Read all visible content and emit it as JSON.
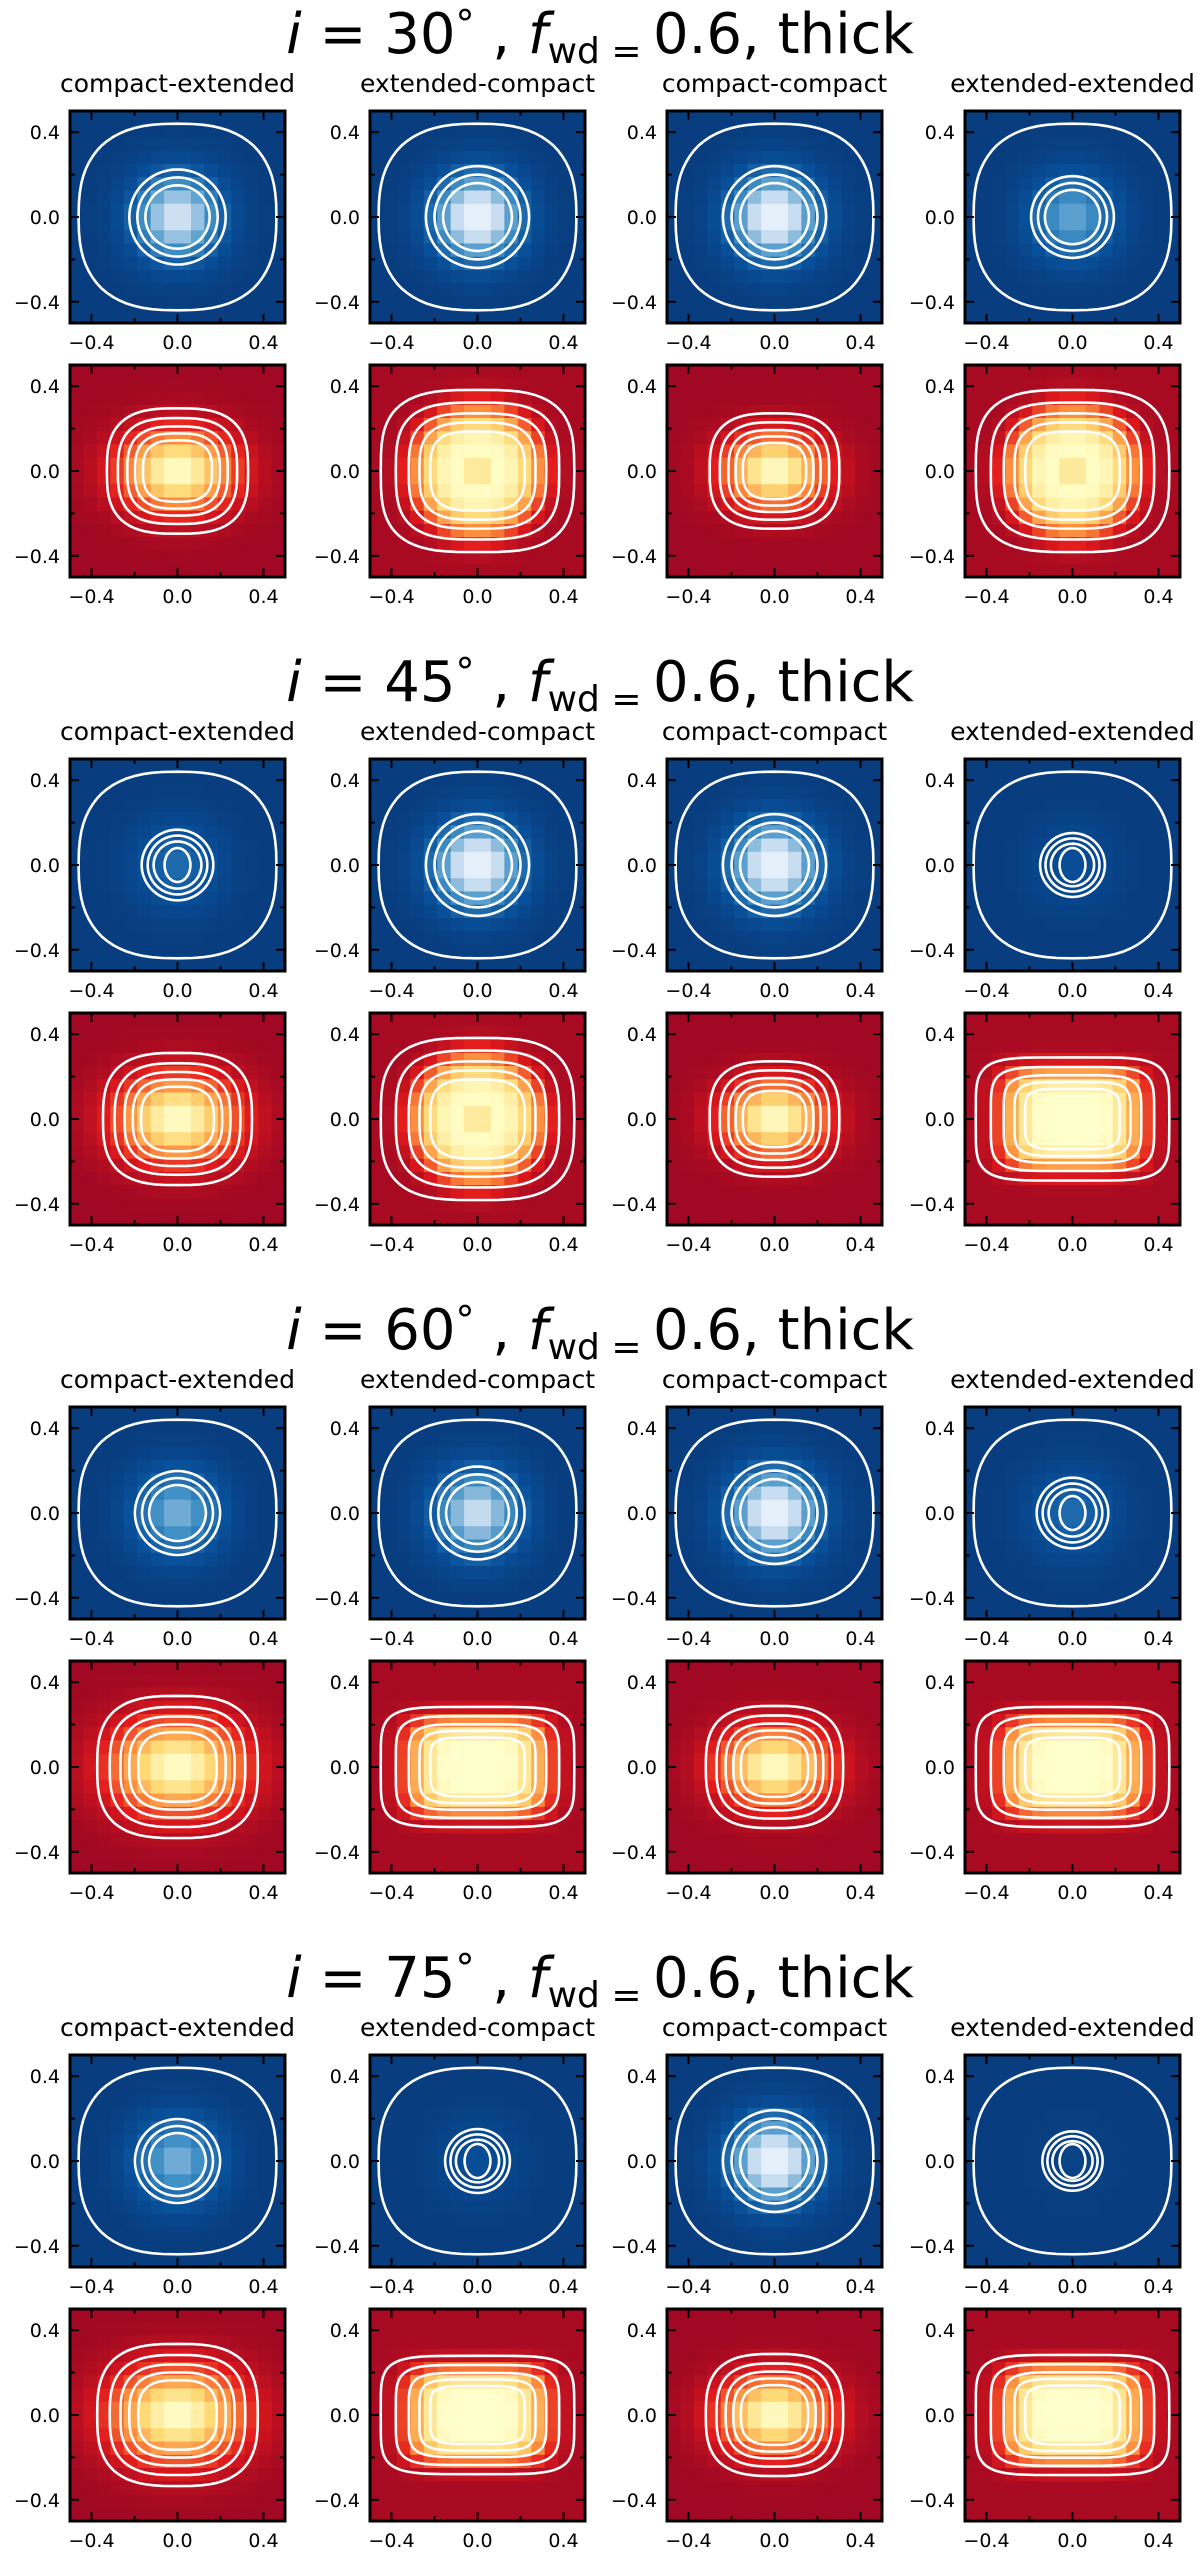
{
  "figure": {
    "title_suffix": ", thick",
    "f_symbol": "f",
    "f_subscript": "wd",
    "f_value": "0.6",
    "i_symbol": "i",
    "degree": "°"
  },
  "chart_data": [
    {
      "type": "heatmap",
      "title": "i = 30°, f_wd = 0.6, thick",
      "inclination": "30",
      "panels": [
        {
          "label": "compact-extended",
          "blue_peak": 0.85,
          "red_shape": "blob",
          "red_core": 0.45
        },
        {
          "label": "extended-compact",
          "blue_peak": 1.0,
          "red_shape": "ring",
          "red_core": 0.9
        },
        {
          "label": "compact-compact",
          "blue_peak": 1.0,
          "red_shape": "blob",
          "red_core": 0.3
        },
        {
          "label": "extended-extended",
          "blue_peak": 0.55,
          "red_shape": "ring",
          "red_core": 1.0
        }
      ],
      "xticks": [
        "−0.4",
        "0.0",
        "0.4"
      ],
      "yticks": [
        "0.4",
        "0.0",
        "−0.4"
      ],
      "xlim": [
        -0.5,
        0.5
      ],
      "ylim": [
        -0.5,
        0.5
      ]
    },
    {
      "type": "heatmap",
      "title": "i = 45°, f_wd = 0.6, thick",
      "inclination": "45",
      "panels": [
        {
          "label": "compact-extended",
          "blue_peak": 0.3,
          "red_shape": "blob",
          "red_core": 0.55
        },
        {
          "label": "extended-compact",
          "blue_peak": 1.0,
          "red_shape": "ring",
          "red_core": 1.2
        },
        {
          "label": "compact-compact",
          "blue_peak": 1.0,
          "red_shape": "blob",
          "red_core": 0.3
        },
        {
          "label": "extended-extended",
          "blue_peak": 0.15,
          "red_shape": "flat",
          "red_core": 1.25
        }
      ],
      "xticks": [
        "−0.4",
        "0.0",
        "0.4"
      ],
      "yticks": [
        "0.4",
        "0.0",
        "−0.4"
      ],
      "xlim": [
        -0.5,
        0.5
      ],
      "ylim": [
        -0.5,
        0.5
      ]
    },
    {
      "type": "heatmap",
      "title": "i = 60°, f_wd = 0.6, thick",
      "inclination": "60",
      "panels": [
        {
          "label": "compact-extended",
          "blue_peak": 0.6,
          "red_shape": "blob",
          "red_core": 0.7
        },
        {
          "label": "extended-compact",
          "blue_peak": 0.8,
          "red_shape": "flat",
          "red_core": 1.5
        },
        {
          "label": "compact-compact",
          "blue_peak": 1.0,
          "red_shape": "blob",
          "red_core": 0.4
        },
        {
          "label": "extended-extended",
          "blue_peak": 0.3,
          "red_shape": "flat",
          "red_core": 1.5
        }
      ],
      "xticks": [
        "−0.4",
        "0.0",
        "0.4"
      ],
      "yticks": [
        "0.4",
        "0.0",
        "−0.4"
      ],
      "xlim": [
        -0.5,
        0.5
      ],
      "ylim": [
        -0.5,
        0.5
      ]
    },
    {
      "type": "heatmap",
      "title": "i = 75°, f_wd = 0.6, thick",
      "inclination": "75",
      "panels": [
        {
          "label": "compact-extended",
          "blue_peak": 0.6,
          "red_shape": "blob",
          "red_core": 0.7
        },
        {
          "label": "extended-compact",
          "blue_peak": 0.15,
          "red_shape": "flat",
          "red_core": 1.7
        },
        {
          "label": "compact-compact",
          "blue_peak": 1.0,
          "red_shape": "blob",
          "red_core": 0.4
        },
        {
          "label": "extended-extended",
          "blue_peak": 0.05,
          "red_shape": "flat",
          "red_core": 1.5
        }
      ],
      "xticks": [
        "−0.4",
        "0.0",
        "0.4"
      ],
      "yticks": [
        "0.4",
        "0.0",
        "−0.4"
      ],
      "xlim": [
        -0.5,
        0.5
      ],
      "ylim": [
        -0.5,
        0.5
      ]
    }
  ]
}
